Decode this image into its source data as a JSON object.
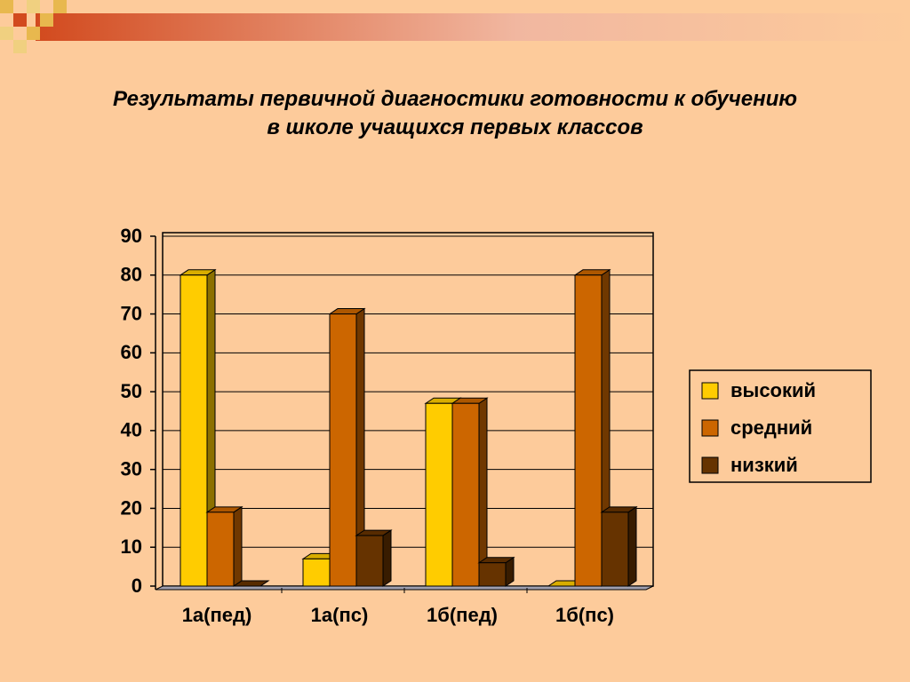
{
  "chart_data": {
    "type": "bar3d",
    "title": "Результаты первичной диагностики готовности к обучению в школе учащихся первых классов",
    "categories": [
      "1а(пед)",
      "1а(пс)",
      "1б(пед)",
      "1б(пс)"
    ],
    "series": [
      {
        "name": "высокий",
        "color": "#ffcc00",
        "values": [
          80,
          7,
          47,
          0
        ]
      },
      {
        "name": "средний",
        "color": "#cc6600",
        "values": [
          19,
          70,
          47,
          80
        ]
      },
      {
        "name": "низкий",
        "color": "#663300",
        "values": [
          0,
          13,
          6,
          19
        ]
      }
    ],
    "ylim": [
      0,
      90
    ],
    "yticks": [
      0,
      10,
      20,
      30,
      40,
      50,
      60,
      70,
      80,
      90
    ],
    "grid": true,
    "legend": "right"
  }
}
